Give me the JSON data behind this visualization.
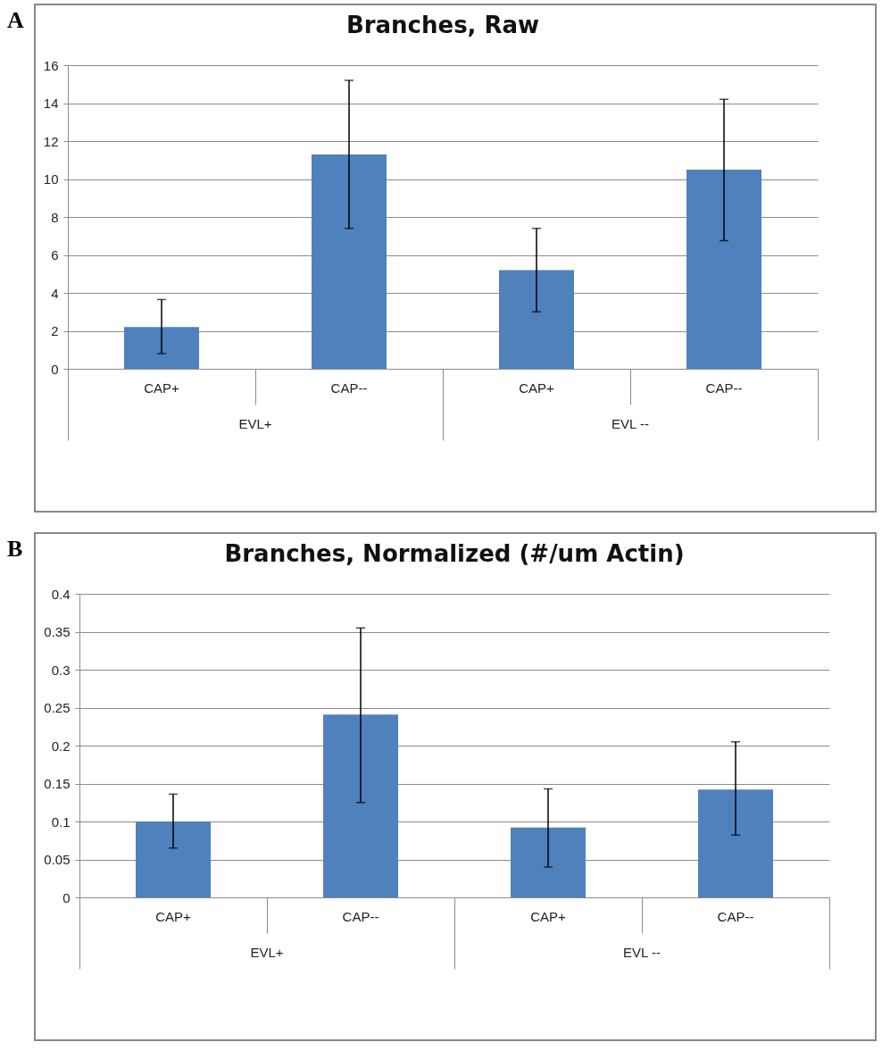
{
  "chart_data": [
    {
      "type": "bar",
      "title": "Branches, Raw",
      "categories": [
        "CAP+",
        "CAP--",
        "CAP+",
        "CAP--"
      ],
      "values": [
        2.2,
        11.3,
        5.2,
        10.5
      ],
      "errors": [
        [
          0.8,
          3.65
        ],
        [
          7.4,
          15.2
        ],
        [
          3.0,
          7.4
        ],
        [
          6.75,
          14.2
        ]
      ],
      "color": "#4f81bd",
      "ylim": [
        0,
        16
      ],
      "yticks": [
        0,
        2,
        4,
        6,
        8,
        10,
        12,
        14,
        16
      ],
      "grid": "y",
      "annotations": [
        "A",
        "EVL+",
        "EVL --"
      ]
    },
    {
      "type": "bar",
      "title": "Branches, Normalized (#/um Actin)",
      "categories": [
        "CAP+",
        "CAP--",
        "CAP+",
        "CAP--"
      ],
      "values": [
        0.1,
        0.241,
        0.092,
        0.142
      ],
      "errors": [
        [
          0.065,
          0.136
        ],
        [
          0.125,
          0.355
        ],
        [
          0.04,
          0.143
        ],
        [
          0.082,
          0.205
        ]
      ],
      "color": "#4f81bd",
      "ylim": [
        0,
        0.4
      ],
      "yticks": [
        0,
        0.05,
        0.1,
        0.15,
        0.2,
        0.25,
        0.3,
        0.35,
        0.4
      ],
      "grid": "y",
      "annotations": [
        "B",
        "EVL+",
        "EVL --"
      ]
    }
  ]
}
